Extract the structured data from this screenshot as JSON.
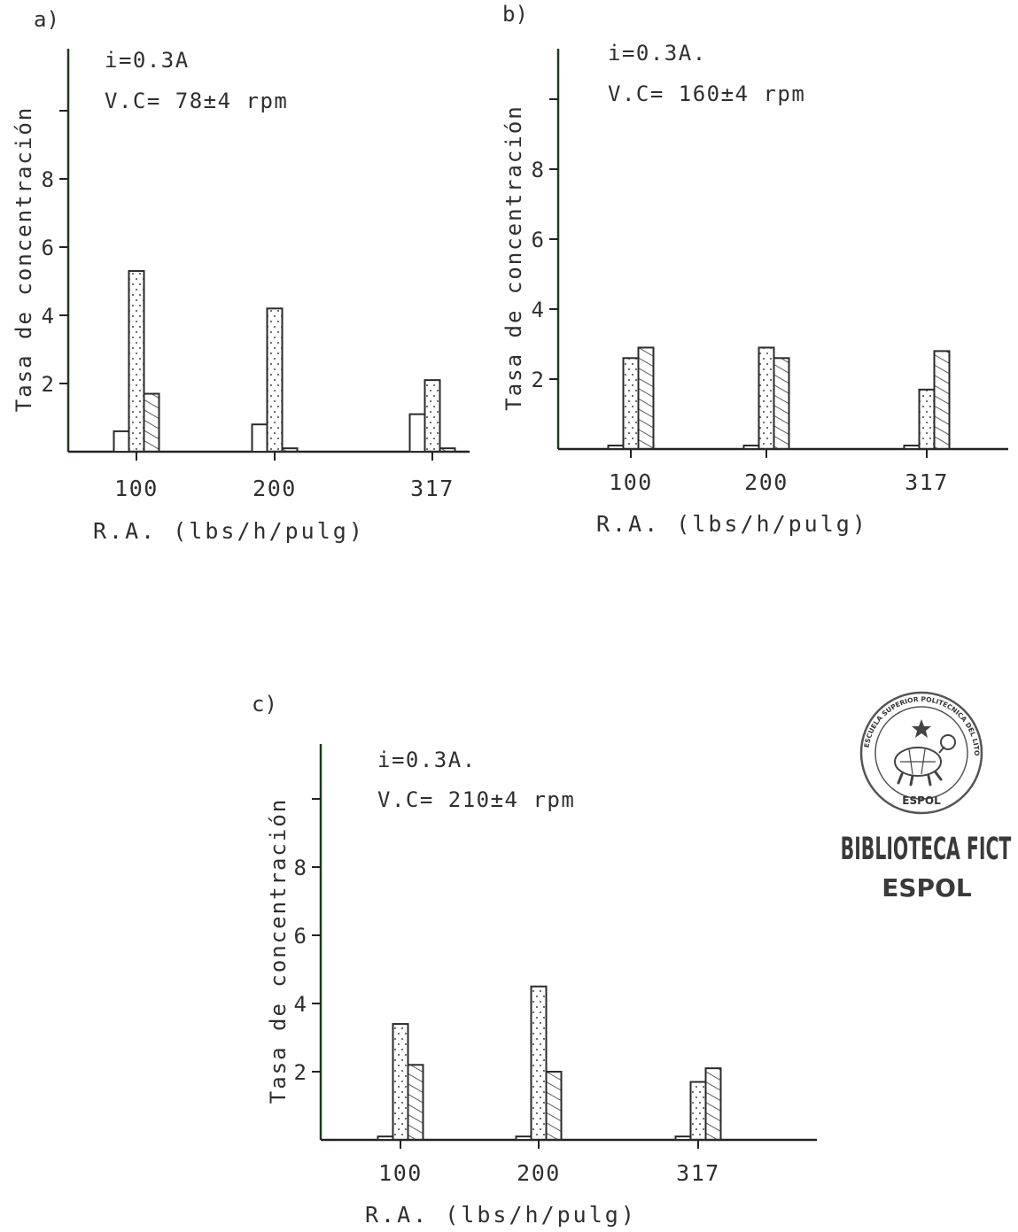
{
  "chart_data": [
    {
      "type": "bar",
      "panel": "a)",
      "annotation": [
        "i=0.3A",
        "V.C= 78±4 rpm"
      ],
      "ylabel": "Tasa de concentración",
      "xlabel": "R.A. (lbs/h/pulg)",
      "categories": [
        "100",
        "200",
        "317"
      ],
      "yticks": [
        "2",
        "4",
        "6",
        "8"
      ],
      "ylim": [
        0,
        12
      ],
      "series": [
        {
          "pattern": "plain",
          "values": [
            0.6,
            0.8,
            1.1
          ]
        },
        {
          "pattern": "dotted",
          "values": [
            5.3,
            4.2,
            2.1
          ]
        },
        {
          "pattern": "hatched",
          "values": [
            1.7,
            0.1,
            0.1
          ]
        }
      ]
    },
    {
      "type": "bar",
      "panel": "b)",
      "annotation": [
        "i=0.3A.",
        "V.C= 160±4 rpm"
      ],
      "ylabel": "Tasa de concentración",
      "xlabel": "R.A. (lbs/h/pulg)",
      "categories": [
        "100",
        "200",
        "317"
      ],
      "yticks": [
        "2",
        "4",
        "6",
        "8"
      ],
      "ylim": [
        0,
        12
      ],
      "series": [
        {
          "pattern": "plain",
          "values": [
            0.1,
            0.1,
            0.1
          ]
        },
        {
          "pattern": "dotted",
          "values": [
            2.6,
            2.9,
            1.7
          ]
        },
        {
          "pattern": "hatched",
          "values": [
            2.9,
            2.6,
            2.8
          ]
        }
      ]
    },
    {
      "type": "bar",
      "panel": "c)",
      "annotation": [
        "i=0.3A.",
        "V.C= 210±4 rpm"
      ],
      "ylabel": "Tasa de concentración",
      "xlabel": "R.A. (lbs/h/pulg)",
      "categories": [
        "100",
        "200",
        "317"
      ],
      "yticks": [
        "2",
        "4",
        "6",
        "8"
      ],
      "ylim": [
        0,
        12
      ],
      "series": [
        {
          "pattern": "plain",
          "values": [
            0.1,
            0.1,
            0.1
          ]
        },
        {
          "pattern": "dotted",
          "values": [
            3.4,
            4.5,
            1.7
          ]
        },
        {
          "pattern": "hatched",
          "values": [
            2.2,
            2.0,
            2.1
          ]
        }
      ]
    }
  ],
  "stamp": {
    "seal_text": "ESCUELA SUPERIOR POLITECNICA DEL LITORAL",
    "seal_bottom": "ESPOL",
    "line1": "BIBLIOTECA FICT",
    "line2": "ESPOL"
  },
  "colors": {
    "ink": "#2f2f2f",
    "axis": "#1f3a1f",
    "stamp": "#3a3a3a"
  }
}
